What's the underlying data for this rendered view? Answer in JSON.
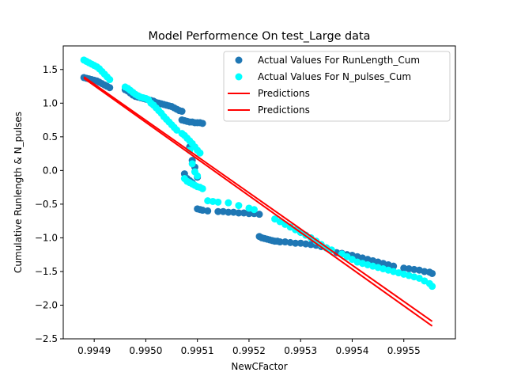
{
  "chart_data": {
    "type": "scatter",
    "title": "Model Performence On test_Large data",
    "xlabel": "NewCFactor",
    "ylabel": "Cumulative Runlength & N_pulses",
    "xlim": [
      0.99484,
      0.9956
    ],
    "ylim": [
      -2.5,
      1.85
    ],
    "x_ticks": [
      0.9949,
      0.995,
      0.9951,
      0.9952,
      0.9953,
      0.9954,
      0.9955
    ],
    "x_tick_labels": [
      "0.9949",
      "0.9950",
      "0.9951",
      "0.9952",
      "0.9953",
      "0.9954",
      "0.9955"
    ],
    "y_ticks": [
      1.5,
      1.0,
      0.5,
      0.0,
      -0.5,
      -1.0,
      -1.5,
      -2.0,
      -2.5
    ],
    "y_tick_labels": [
      "1.5",
      "1.0",
      "0.5",
      "0.0",
      "−0.5",
      "−1.0",
      "−1.5",
      "−2.0",
      "−2.5"
    ],
    "legend_position": "upper right",
    "series": [
      {
        "name": "Actual Values For RunLength_Cum",
        "kind": "scatter",
        "color": "#1f77b4",
        "points": [
          [
            0.99488,
            1.38
          ],
          [
            0.994885,
            1.37
          ],
          [
            0.99489,
            1.36
          ],
          [
            0.994895,
            1.35
          ],
          [
            0.9949,
            1.34
          ],
          [
            0.994905,
            1.33
          ],
          [
            0.99491,
            1.31
          ],
          [
            0.994915,
            1.29
          ],
          [
            0.99492,
            1.27
          ],
          [
            0.994925,
            1.25
          ],
          [
            0.99493,
            1.23
          ],
          [
            0.99496,
            1.2
          ],
          [
            0.994965,
            1.18
          ],
          [
            0.99497,
            1.15
          ],
          [
            0.994975,
            1.12
          ],
          [
            0.99498,
            1.1
          ],
          [
            0.994985,
            1.09
          ],
          [
            0.99499,
            1.08
          ],
          [
            0.994995,
            1.07
          ],
          [
            0.995,
            1.06
          ],
          [
            0.995005,
            1.05
          ],
          [
            0.99501,
            1.04
          ],
          [
            0.995015,
            1.03
          ],
          [
            0.99502,
            1.01
          ],
          [
            0.995025,
            1.0
          ],
          [
            0.99503,
            0.99
          ],
          [
            0.995035,
            0.98
          ],
          [
            0.99504,
            0.97
          ],
          [
            0.995045,
            0.96
          ],
          [
            0.99505,
            0.95
          ],
          [
            0.995055,
            0.93
          ],
          [
            0.99506,
            0.91
          ],
          [
            0.995065,
            0.89
          ],
          [
            0.99507,
            0.88
          ],
          [
            0.99507,
            0.75
          ],
          [
            0.995075,
            0.74
          ],
          [
            0.99508,
            0.73
          ],
          [
            0.995085,
            0.72
          ],
          [
            0.99509,
            0.72
          ],
          [
            0.995095,
            0.71
          ],
          [
            0.9951,
            0.71
          ],
          [
            0.995105,
            0.71
          ],
          [
            0.99511,
            0.7
          ],
          [
            0.995085,
            0.35
          ],
          [
            0.99509,
            0.15
          ],
          [
            0.995095,
            0.05
          ],
          [
            0.9951,
            -0.1
          ],
          [
            0.995075,
            -0.05
          ],
          [
            0.99508,
            -0.12
          ],
          [
            0.995085,
            -0.15
          ],
          [
            0.99509,
            -0.18
          ],
          [
            0.9951,
            -0.57
          ],
          [
            0.995105,
            -0.58
          ],
          [
            0.99511,
            -0.59
          ],
          [
            0.99512,
            -0.6
          ],
          [
            0.99514,
            -0.61
          ],
          [
            0.99515,
            -0.61
          ],
          [
            0.99516,
            -0.62
          ],
          [
            0.99517,
            -0.62
          ],
          [
            0.99518,
            -0.63
          ],
          [
            0.99519,
            -0.63
          ],
          [
            0.9952,
            -0.64
          ],
          [
            0.99521,
            -0.64
          ],
          [
            0.99522,
            -0.65
          ],
          [
            0.99522,
            -0.98
          ],
          [
            0.995225,
            -1.0
          ],
          [
            0.99523,
            -1.01
          ],
          [
            0.995235,
            -1.02
          ],
          [
            0.99524,
            -1.03
          ],
          [
            0.995245,
            -1.04
          ],
          [
            0.99525,
            -1.05
          ],
          [
            0.995255,
            -1.05
          ],
          [
            0.99526,
            -1.06
          ],
          [
            0.99527,
            -1.06
          ],
          [
            0.99528,
            -1.07
          ],
          [
            0.99529,
            -1.08
          ],
          [
            0.9953,
            -1.08
          ],
          [
            0.99531,
            -1.09
          ],
          [
            0.99532,
            -1.1
          ],
          [
            0.99533,
            -1.11
          ],
          [
            0.99534,
            -1.13
          ],
          [
            0.99535,
            -1.15
          ],
          [
            0.99537,
            -1.22
          ],
          [
            0.99538,
            -1.23
          ],
          [
            0.99539,
            -1.25
          ],
          [
            0.9954,
            -1.26
          ],
          [
            0.99541,
            -1.28
          ],
          [
            0.99542,
            -1.3
          ],
          [
            0.99543,
            -1.32
          ],
          [
            0.99544,
            -1.34
          ],
          [
            0.99545,
            -1.36
          ],
          [
            0.99546,
            -1.38
          ],
          [
            0.99547,
            -1.4
          ],
          [
            0.99548,
            -1.42
          ],
          [
            0.9955,
            -1.45
          ],
          [
            0.99551,
            -1.46
          ],
          [
            0.99552,
            -1.47
          ],
          [
            0.99553,
            -1.48
          ],
          [
            0.99554,
            -1.5
          ],
          [
            0.99555,
            -1.51
          ],
          [
            0.995555,
            -1.53
          ]
        ]
      },
      {
        "name": "Actual Values For N_pulses_Cum",
        "kind": "scatter",
        "color": "#00ffff",
        "points": [
          [
            0.99488,
            1.64
          ],
          [
            0.994885,
            1.62
          ],
          [
            0.99489,
            1.6
          ],
          [
            0.994895,
            1.58
          ],
          [
            0.9949,
            1.56
          ],
          [
            0.994905,
            1.54
          ],
          [
            0.99491,
            1.51
          ],
          [
            0.994915,
            1.47
          ],
          [
            0.99492,
            1.43
          ],
          [
            0.994925,
            1.39
          ],
          [
            0.99493,
            1.35
          ],
          [
            0.99496,
            1.24
          ],
          [
            0.994965,
            1.22
          ],
          [
            0.99497,
            1.19
          ],
          [
            0.994975,
            1.16
          ],
          [
            0.99498,
            1.13
          ],
          [
            0.994985,
            1.11
          ],
          [
            0.99499,
            1.09
          ],
          [
            0.994995,
            1.08
          ],
          [
            0.995,
            1.07
          ],
          [
            0.995005,
            1.05
          ],
          [
            0.99501,
            1.0
          ],
          [
            0.995015,
            0.97
          ],
          [
            0.99502,
            0.93
          ],
          [
            0.995025,
            0.89
          ],
          [
            0.99503,
            0.85
          ],
          [
            0.995035,
            0.8
          ],
          [
            0.99504,
            0.76
          ],
          [
            0.995045,
            0.72
          ],
          [
            0.99505,
            0.68
          ],
          [
            0.995055,
            0.64
          ],
          [
            0.99506,
            0.6
          ],
          [
            0.99507,
            0.55
          ],
          [
            0.995075,
            0.52
          ],
          [
            0.99508,
            0.48
          ],
          [
            0.995085,
            0.44
          ],
          [
            0.99509,
            0.4
          ],
          [
            0.995095,
            0.35
          ],
          [
            0.9951,
            0.3
          ],
          [
            0.995105,
            0.26
          ],
          [
            0.995085,
            0.3
          ],
          [
            0.99509,
            0.1
          ],
          [
            0.995095,
            -0.02
          ],
          [
            0.9951,
            -0.08
          ],
          [
            0.995075,
            -0.12
          ],
          [
            0.99508,
            -0.16
          ],
          [
            0.995085,
            -0.18
          ],
          [
            0.99509,
            -0.2
          ],
          [
            0.995095,
            -0.22
          ],
          [
            0.9951,
            -0.24
          ],
          [
            0.995105,
            -0.25
          ],
          [
            0.99511,
            -0.27
          ],
          [
            0.99512,
            -0.45
          ],
          [
            0.99513,
            -0.46
          ],
          [
            0.99514,
            -0.47
          ],
          [
            0.99516,
            -0.48
          ],
          [
            0.99518,
            -0.52
          ],
          [
            0.9952,
            -0.56
          ],
          [
            0.99521,
            -0.58
          ],
          [
            0.99525,
            -0.72
          ],
          [
            0.99526,
            -0.76
          ],
          [
            0.99527,
            -0.8
          ],
          [
            0.99528,
            -0.84
          ],
          [
            0.99529,
            -0.88
          ],
          [
            0.9953,
            -0.92
          ],
          [
            0.99531,
            -0.96
          ],
          [
            0.99532,
            -1.0
          ],
          [
            0.99533,
            -1.05
          ],
          [
            0.99534,
            -1.1
          ],
          [
            0.99535,
            -1.15
          ],
          [
            0.99536,
            -1.18
          ],
          [
            0.99538,
            -1.24
          ],
          [
            0.99539,
            -1.28
          ],
          [
            0.9954,
            -1.32
          ],
          [
            0.99541,
            -1.36
          ],
          [
            0.99542,
            -1.38
          ],
          [
            0.99543,
            -1.4
          ],
          [
            0.99544,
            -1.42
          ],
          [
            0.99545,
            -1.44
          ],
          [
            0.99546,
            -1.46
          ],
          [
            0.99547,
            -1.48
          ],
          [
            0.99548,
            -1.5
          ],
          [
            0.99549,
            -1.52
          ],
          [
            0.9955,
            -1.54
          ],
          [
            0.99551,
            -1.56
          ],
          [
            0.99552,
            -1.58
          ],
          [
            0.99553,
            -1.6
          ],
          [
            0.99554,
            -1.64
          ],
          [
            0.99555,
            -1.68
          ],
          [
            0.995555,
            -1.72
          ]
        ]
      },
      {
        "name": "Predictions",
        "kind": "line",
        "color": "#ff0000",
        "points": [
          [
            0.99488,
            1.39
          ],
          [
            0.995555,
            -2.24
          ]
        ]
      },
      {
        "name": "Predictions",
        "kind": "line",
        "color": "#ff0000",
        "points": [
          [
            0.99488,
            1.37
          ],
          [
            0.995555,
            -2.31
          ]
        ]
      }
    ]
  }
}
